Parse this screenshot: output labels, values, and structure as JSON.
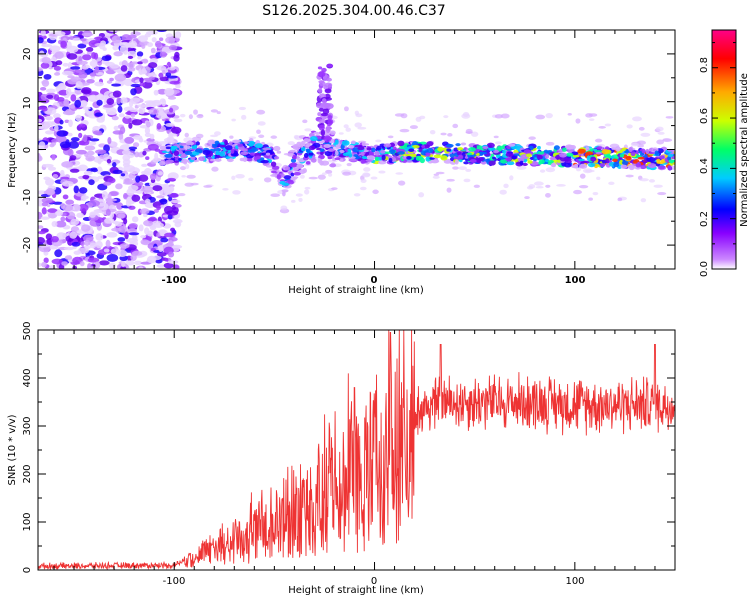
{
  "page_title": "S126.2025.304.00.46.C37",
  "chart_data": [
    {
      "type": "heatmap",
      "name": "spectrogram",
      "xlabel": "Height of straight line (km)",
      "ylabel": "Frequency (Hz)",
      "xlim": [
        -168,
        150
      ],
      "ylim": [
        -25,
        25
      ],
      "xticks": [
        -100,
        0,
        100
      ],
      "xtick_labels": [
        "-100",
        "0",
        "100"
      ],
      "yticks": [
        20,
        10,
        0,
        -10,
        -20
      ],
      "ytick_labels": [
        "20",
        "10",
        "0",
        "-10",
        "-20"
      ],
      "colorbar": {
        "label": "Normalized spectral amplitude",
        "range": [
          0,
          0.95
        ],
        "ticks": [
          0.0,
          0.2,
          0.4,
          0.6,
          0.8
        ],
        "tick_labels": [
          "0.0",
          "0.2",
          "0.4",
          "0.6",
          "0.8"
        ],
        "colors": [
          "#ffffff",
          "#cc88ff",
          "#8800ff",
          "#0000ff",
          "#00ccff",
          "#00ff66",
          "#ccff00",
          "#ffaa00",
          "#ff0000",
          "#ff0088"
        ]
      },
      "noise_region_x": [
        -168,
        -98
      ],
      "signal_track": {
        "x": [
          -105,
          -90,
          -70,
          -60,
          -50,
          -45,
          -40,
          -30,
          -20,
          0,
          20,
          40,
          60,
          80,
          100,
          120,
          150
        ],
        "center_freq": [
          -1,
          -0.5,
          -0.2,
          0,
          -2,
          -6,
          -3,
          1,
          0,
          -1,
          -0.5,
          -0.7,
          -1,
          -1.2,
          -1.5,
          -1.7,
          -2
        ]
      }
    },
    {
      "type": "line",
      "name": "snr",
      "xlabel": "Height of straight line (km)",
      "ylabel": "SNR (10 * v/v)",
      "xlim": [
        -168,
        150
      ],
      "ylim": [
        0,
        500
      ],
      "xticks": [
        -100,
        0,
        100
      ],
      "xtick_labels": [
        "-100",
        "0",
        "100"
      ],
      "yticks": [
        0,
        100,
        200,
        300,
        400,
        500
      ],
      "ytick_labels": [
        "0",
        "100",
        "200",
        "300",
        "400",
        "500"
      ],
      "line_color": "#ee3333",
      "trend": {
        "x": [
          -168,
          -100,
          -95,
          -90,
          -80,
          -70,
          -60,
          -50,
          -40,
          -30,
          -20,
          -10,
          0,
          5,
          10,
          20,
          30,
          40,
          60,
          80,
          100,
          120,
          150
        ],
        "y": [
          8,
          10,
          20,
          30,
          50,
          70,
          90,
          110,
          140,
          170,
          200,
          230,
          250,
          270,
          310,
          330,
          345,
          350,
          350,
          350,
          345,
          345,
          345
        ]
      },
      "peaks": [
        {
          "x": 8,
          "y": 495
        },
        {
          "x": 33,
          "y": 470
        },
        {
          "x": -10,
          "y": 380
        },
        {
          "x": 140,
          "y": 470
        }
      ]
    }
  ]
}
